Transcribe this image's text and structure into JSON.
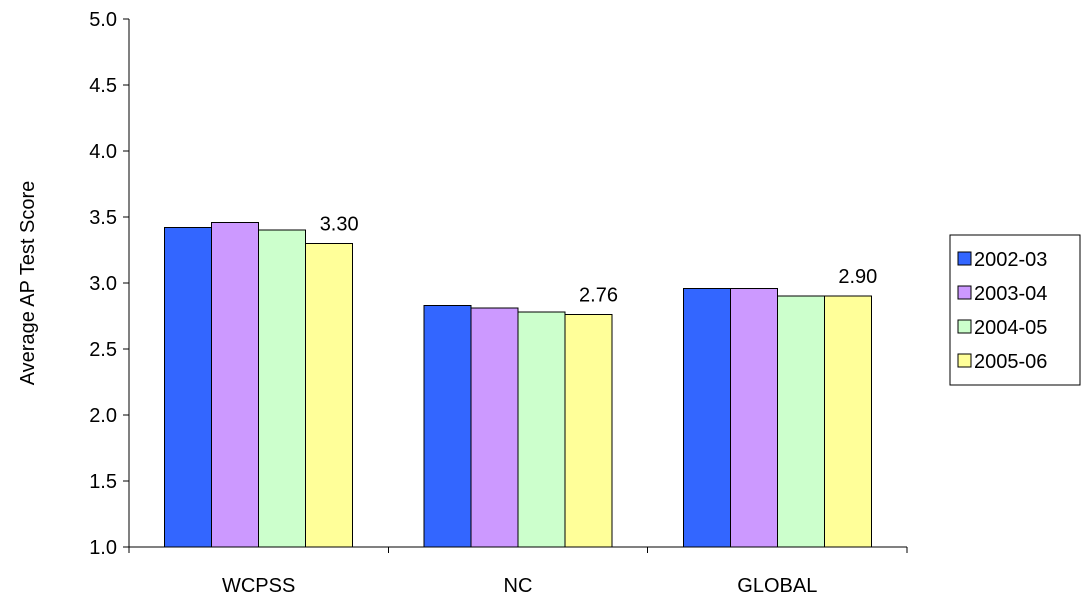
{
  "chart_data": {
    "type": "bar",
    "title": "",
    "xlabel": "",
    "ylabel": "Average AP Test Score",
    "ylim": [
      1.0,
      5.0
    ],
    "yticks": [
      "1.0",
      "1.5",
      "2.0",
      "2.5",
      "3.0",
      "3.5",
      "4.0",
      "4.5",
      "5.0"
    ],
    "categories": [
      "WCPSS",
      "NC",
      "GLOBAL"
    ],
    "series": [
      {
        "name": "2002-03",
        "color": "#3366FF",
        "values": [
          3.42,
          2.83,
          2.96
        ]
      },
      {
        "name": "2003-04",
        "color": "#CC99FF",
        "values": [
          3.46,
          2.81,
          2.96
        ]
      },
      {
        "name": "2004-05",
        "color": "#CCFFCC",
        "values": [
          3.4,
          2.78,
          2.9
        ]
      },
      {
        "name": "2005-06",
        "color": "#FFFF99",
        "values": [
          3.3,
          2.76,
          2.9
        ]
      }
    ],
    "data_labels": [
      {
        "category": 0,
        "series": 3,
        "text": "3.30"
      },
      {
        "category": 1,
        "series": 3,
        "text": "2.76"
      },
      {
        "category": 2,
        "series": 3,
        "text": "2.90"
      }
    ],
    "grid": false,
    "legend_position": "right"
  }
}
